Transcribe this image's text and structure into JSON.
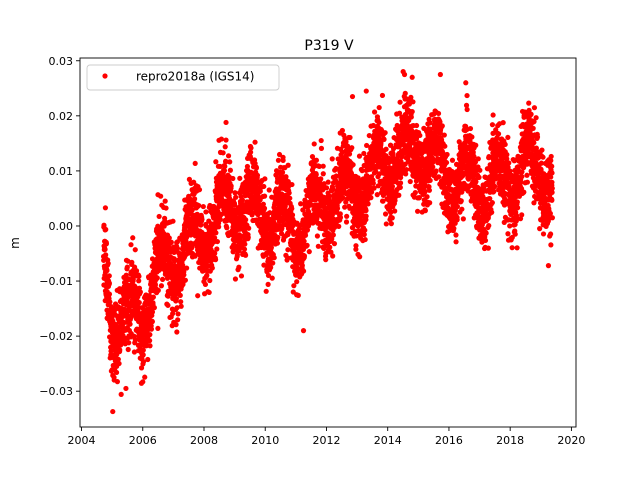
{
  "chart_data": {
    "type": "scatter",
    "title": "P319 V",
    "xlabel": "",
    "ylabel": "m",
    "xlim": [
      2003.95,
      2020.15
    ],
    "ylim": [
      -0.0365,
      0.0305
    ],
    "xticks": [
      2004,
      2006,
      2008,
      2010,
      2012,
      2014,
      2016,
      2018,
      2020
    ],
    "xtick_labels": [
      "2004",
      "2006",
      "2008",
      "2010",
      "2012",
      "2014",
      "2016",
      "2018",
      "2020"
    ],
    "yticks": [
      -0.03,
      -0.02,
      -0.01,
      0.0,
      0.01,
      0.02,
      0.03
    ],
    "ytick_labels": [
      "−0.03",
      "−0.02",
      "−0.01",
      "0.00",
      "0.01",
      "0.02",
      "0.03"
    ],
    "grid": false,
    "legend": {
      "position": "top-left"
    },
    "series": [
      {
        "name": "repro2018a (IGS14)",
        "color": "#ff0000",
        "marker": "circle",
        "start": 2004.72,
        "end": 2019.38,
        "trend_x": [
          2004.7,
          2005.0,
          2005.5,
          2006.0,
          2006.5,
          2007.0,
          2007.5,
          2008.0,
          2008.5,
          2009.0,
          2009.5,
          2010.0,
          2010.5,
          2011.0,
          2011.5,
          2012.0,
          2012.5,
          2013.0,
          2013.5,
          2014.0,
          2014.5,
          2015.0,
          2015.5,
          2016.0,
          2016.5,
          2017.0,
          2017.5,
          2018.0,
          2018.5,
          2019.0,
          2019.4
        ],
        "trend_y": [
          -0.008,
          -0.016,
          -0.017,
          -0.016,
          -0.008,
          -0.006,
          -0.003,
          -0.001,
          0.003,
          0.004,
          0.003,
          0.002,
          0.001,
          -0.001,
          0.002,
          0.005,
          0.006,
          0.007,
          0.009,
          0.011,
          0.013,
          0.014,
          0.012,
          0.009,
          0.008,
          0.007,
          0.008,
          0.009,
          0.011,
          0.011,
          0.007
        ],
        "seasonal_amplitude": 0.0045,
        "scatter_spread": 0.0035,
        "extremes": [
          [
            2004.78,
            0.0033
          ],
          [
            2005.02,
            -0.0337
          ],
          [
            2005.45,
            -0.0295
          ],
          [
            2006.0,
            -0.0283
          ],
          [
            2008.72,
            0.0188
          ],
          [
            2011.25,
            -0.019
          ],
          [
            2012.85,
            0.0235
          ],
          [
            2013.3,
            0.0245
          ],
          [
            2014.55,
            0.0275
          ],
          [
            2014.8,
            0.027
          ],
          [
            2015.72,
            0.0275
          ],
          [
            2016.55,
            0.026
          ],
          [
            2019.25,
            -0.0072
          ]
        ]
      }
    ]
  }
}
